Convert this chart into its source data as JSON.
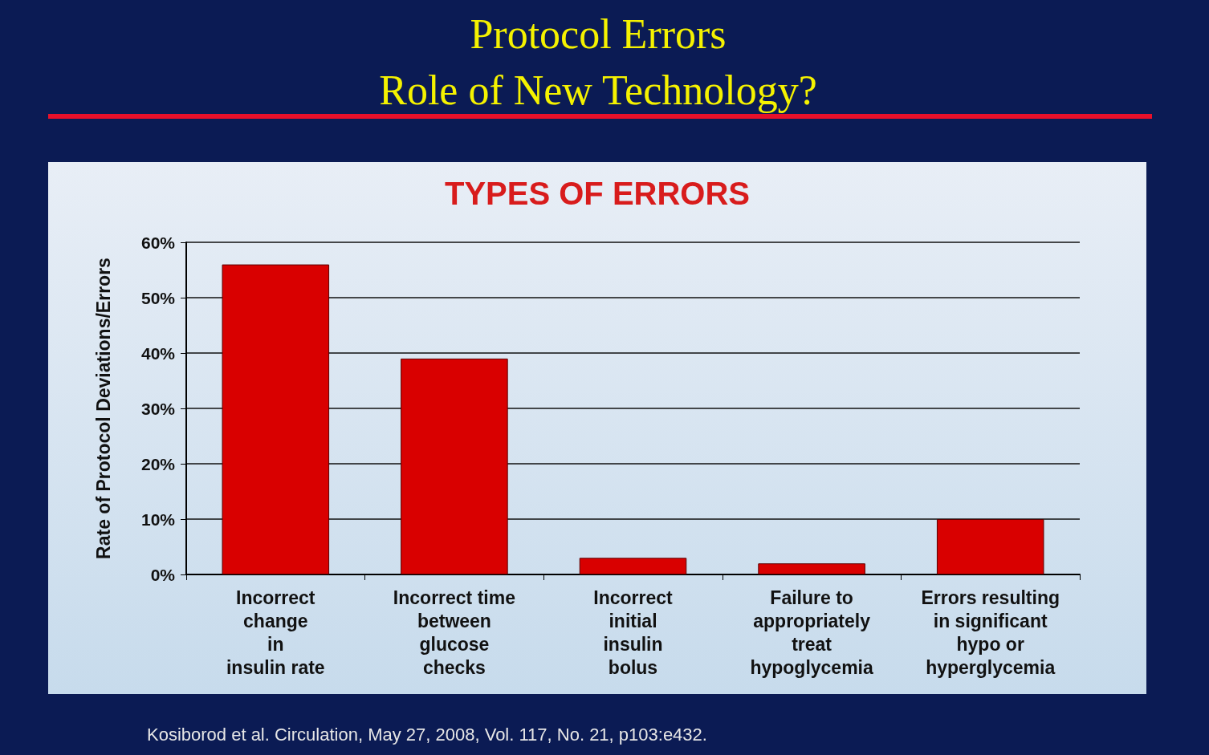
{
  "chart_data": {
    "type": "bar",
    "title": "Protocol Errors\nRole of New Technology?",
    "subtitle": "TYPES OF ERRORS",
    "ylabel": "Rate of Protocol Deviations/Errors",
    "categories": [
      "Incorrect\nchange\nin\ninsulin rate",
      "Incorrect time\nbetween\nglucose\nchecks",
      "Incorrect\ninitial\ninsulin\nbolus",
      "Failure to\nappropriately\ntreat\nhypoglycemia",
      "Errors resulting\nin significant\nhypo or\nhyperglycemia"
    ],
    "values": [
      56,
      39,
      3,
      2,
      10
    ],
    "color": "#d90000",
    "ylim": [
      0,
      60
    ],
    "yticks": [
      {
        "value": 0,
        "label": "0%"
      },
      {
        "value": 10,
        "label": "10%"
      },
      {
        "value": 20,
        "label": "20%"
      },
      {
        "value": 30,
        "label": "30%"
      },
      {
        "value": 40,
        "label": "40%"
      },
      {
        "value": 50,
        "label": "50%"
      },
      {
        "value": 60,
        "label": "60%"
      }
    ],
    "grid": "y",
    "annotations": [
      "Kosiborod et al. Circulation, May 27, 2008, Vol. 117, No. 21, p103:e432."
    ]
  }
}
